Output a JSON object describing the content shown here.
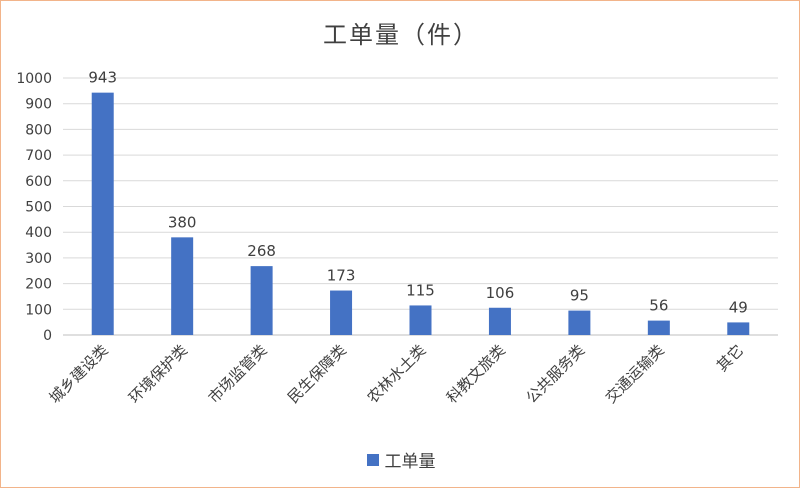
{
  "chart_data": {
    "type": "bar",
    "title": "工单量（件）",
    "categories": [
      "城乡建设类",
      "环境保护类",
      "市场监管类",
      "民生保障类",
      "农林水土类",
      "科教文旅类",
      "公共服务类",
      "交通运输类",
      "其它"
    ],
    "series": [
      {
        "name": "工单量",
        "values": [
          943,
          380,
          268,
          173,
          115,
          106,
          95,
          56,
          49
        ]
      }
    ],
    "ylim": [
      0,
      1000
    ],
    "yticks": [
      0,
      100,
      200,
      300,
      400,
      500,
      600,
      700,
      800,
      900,
      1000
    ],
    "grid": true,
    "legend_position": "bottom",
    "bar_color": "#4472c4"
  }
}
